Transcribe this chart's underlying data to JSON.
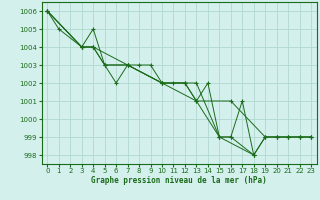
{
  "bg_color": "#d4f0ed",
  "plot_bg": "#d4f0ed",
  "line_color": "#1a6b1a",
  "grid_color": "#b0d8d0",
  "xlabel": "Graphe pression niveau de la mer (hPa)",
  "ylim": [
    997.5,
    1006.5
  ],
  "xlim": [
    -0.5,
    23.5
  ],
  "yticks": [
    998,
    999,
    1000,
    1001,
    1002,
    1003,
    1004,
    1005,
    1006
  ],
  "xticks": [
    0,
    1,
    2,
    3,
    4,
    5,
    6,
    7,
    8,
    9,
    10,
    11,
    12,
    13,
    14,
    15,
    16,
    17,
    18,
    19,
    20,
    21,
    22,
    23
  ],
  "series": [
    {
      "x": [
        0,
        1,
        3,
        4,
        5,
        6,
        7,
        8,
        9,
        10,
        11,
        12,
        13,
        14,
        15,
        16,
        17,
        18,
        19,
        20,
        21,
        22,
        23
      ],
      "y": [
        1006,
        1005,
        1004,
        1005,
        1003,
        1002,
        1003,
        1003,
        1003,
        1002,
        1002,
        1002,
        1001,
        1002,
        999,
        999,
        1001,
        998,
        999,
        999,
        999,
        999,
        999
      ]
    },
    {
      "x": [
        0,
        3,
        4,
        5,
        7,
        10,
        12,
        13,
        15,
        18
      ],
      "y": [
        1006,
        1004,
        1004,
        1003,
        1003,
        1002,
        1002,
        1002,
        999,
        998
      ]
    },
    {
      "x": [
        0,
        3,
        4,
        7,
        10,
        12,
        15,
        16,
        18,
        19,
        20,
        21,
        22,
        23
      ],
      "y": [
        1006,
        1004,
        1004,
        1003,
        1002,
        1002,
        999,
        999,
        998,
        999,
        999,
        999,
        999,
        999
      ]
    },
    {
      "x": [
        0,
        3,
        4,
        5,
        7,
        10,
        13,
        16,
        19,
        20,
        21,
        22,
        23
      ],
      "y": [
        1006,
        1004,
        1004,
        1003,
        1003,
        1002,
        1001,
        1001,
        999,
        999,
        999,
        999,
        999
      ]
    }
  ]
}
